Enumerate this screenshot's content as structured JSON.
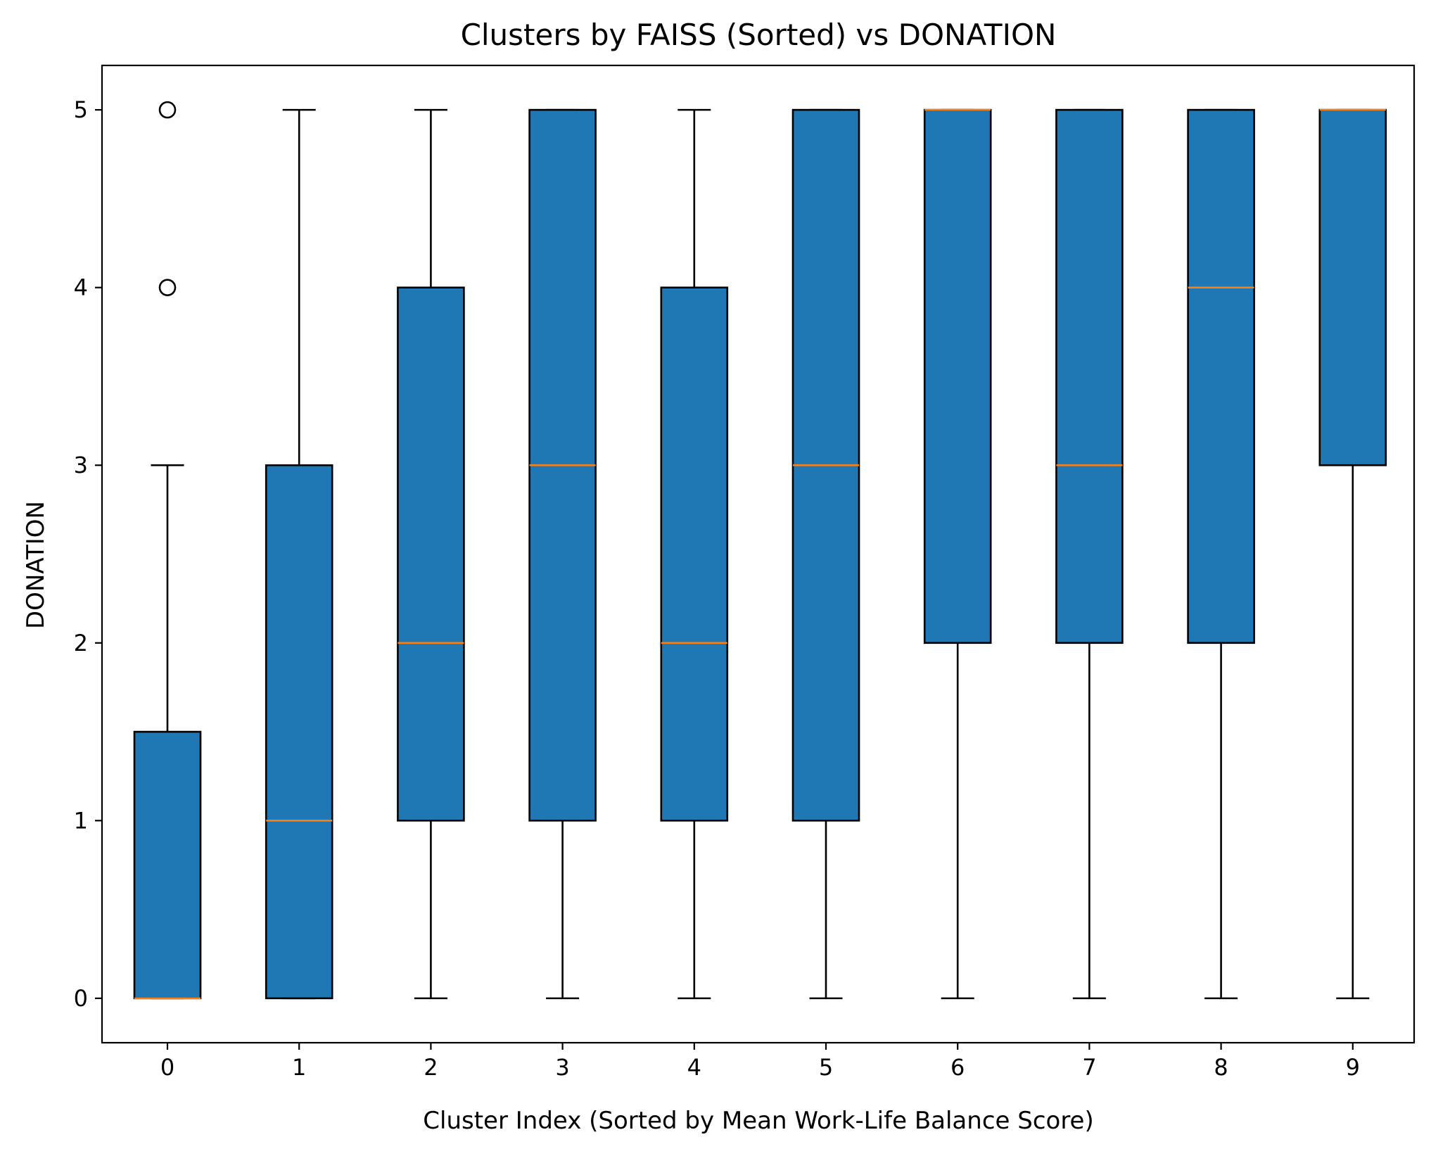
{
  "chart_data": {
    "type": "boxplot",
    "title": "Clusters by FAISS (Sorted) vs DONATION",
    "xlabel": "Cluster Index (Sorted by Mean Work-Life Balance Score)",
    "ylabel": "DONATION",
    "categories": [
      "0",
      "1",
      "2",
      "3",
      "4",
      "5",
      "6",
      "7",
      "8",
      "9"
    ],
    "ylim": [
      -0.25,
      5.25
    ],
    "yticks": [
      0,
      1,
      2,
      3,
      4,
      5
    ],
    "grid": false,
    "legend": "none",
    "colors": {
      "box_fill": "#1f77b4",
      "box_edge": "#000000",
      "median": "#ff7f0e",
      "whisker": "#000000"
    },
    "boxes": [
      {
        "category": "0",
        "whisker_low": 0,
        "q1": 0,
        "median": 0,
        "q3": 1.5,
        "whisker_high": 3,
        "outliers": [
          4,
          5
        ]
      },
      {
        "category": "1",
        "whisker_low": 0,
        "q1": 0,
        "median": 1,
        "q3": 3,
        "whisker_high": 5,
        "outliers": []
      },
      {
        "category": "2",
        "whisker_low": 0,
        "q1": 1,
        "median": 2,
        "q3": 4,
        "whisker_high": 5,
        "outliers": []
      },
      {
        "category": "3",
        "whisker_low": 0,
        "q1": 1,
        "median": 3,
        "q3": 5,
        "whisker_high": 5,
        "outliers": []
      },
      {
        "category": "4",
        "whisker_low": 0,
        "q1": 1,
        "median": 2,
        "q3": 4,
        "whisker_high": 5,
        "outliers": []
      },
      {
        "category": "5",
        "whisker_low": 0,
        "q1": 1,
        "median": 3,
        "q3": 5,
        "whisker_high": 5,
        "outliers": []
      },
      {
        "category": "6",
        "whisker_low": 0,
        "q1": 2,
        "median": 5,
        "q3": 5,
        "whisker_high": 5,
        "outliers": []
      },
      {
        "category": "7",
        "whisker_low": 0,
        "q1": 2,
        "median": 3,
        "q3": 5,
        "whisker_high": 5,
        "outliers": []
      },
      {
        "category": "8",
        "whisker_low": 0,
        "q1": 2,
        "median": 4,
        "q3": 5,
        "whisker_high": 5,
        "outliers": []
      },
      {
        "category": "9",
        "whisker_low": 0,
        "q1": 3,
        "median": 5,
        "q3": 5,
        "whisker_high": 5,
        "outliers": []
      }
    ]
  }
}
